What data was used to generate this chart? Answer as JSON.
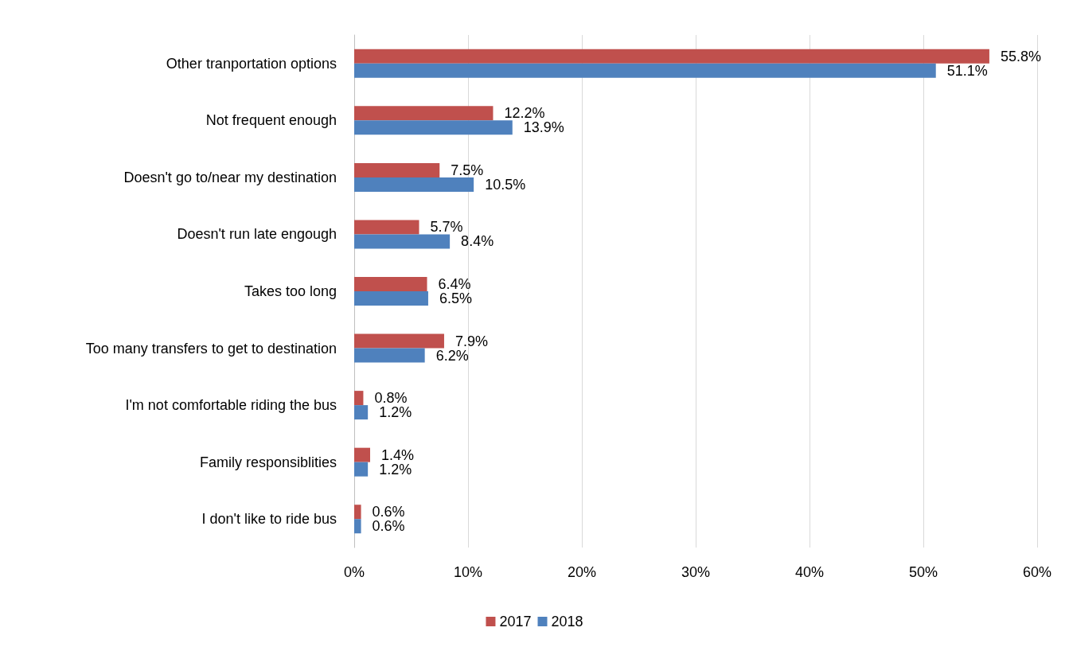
{
  "chart_data": {
    "type": "bar",
    "orientation": "horizontal",
    "categories": [
      "Other tranportation options",
      "Not frequent enough",
      "Doesn't go to/near my destination",
      "Doesn't run late engough",
      "Takes too long",
      "Too many transfers to get to destination",
      "I'm not comfortable riding the bus",
      "Family responsiblities",
      "I don't like to ride bus"
    ],
    "series": [
      {
        "name": "2017",
        "color": "#c0504d",
        "values": [
          55.8,
          12.2,
          7.5,
          5.7,
          6.4,
          7.9,
          0.8,
          1.4,
          0.6
        ],
        "value_labels": [
          "55.8%",
          "12.2%",
          "7.5%",
          "5.7%",
          "6.4%",
          "7.9%",
          "0.8%",
          "1.4%",
          "0.6%"
        ]
      },
      {
        "name": "2018",
        "color": "#4f81bd",
        "values": [
          51.1,
          13.9,
          10.5,
          8.4,
          6.5,
          6.2,
          1.2,
          1.2,
          0.6
        ],
        "value_labels": [
          "51.1%",
          "13.9%",
          "10.5%",
          "8.4%",
          "6.5%",
          "6.2%",
          "1.2%",
          "1.2%",
          "0.6%"
        ]
      }
    ],
    "xlim": [
      0,
      60
    ],
    "xticks": [
      {
        "value": 0,
        "label": "0%"
      },
      {
        "value": 10,
        "label": "10%"
      },
      {
        "value": 20,
        "label": "20%"
      },
      {
        "value": 30,
        "label": "30%"
      },
      {
        "value": 40,
        "label": "40%"
      },
      {
        "value": 50,
        "label": "50%"
      },
      {
        "value": 60,
        "label": "60%"
      }
    ],
    "grid": "x",
    "legend": "bottom"
  }
}
